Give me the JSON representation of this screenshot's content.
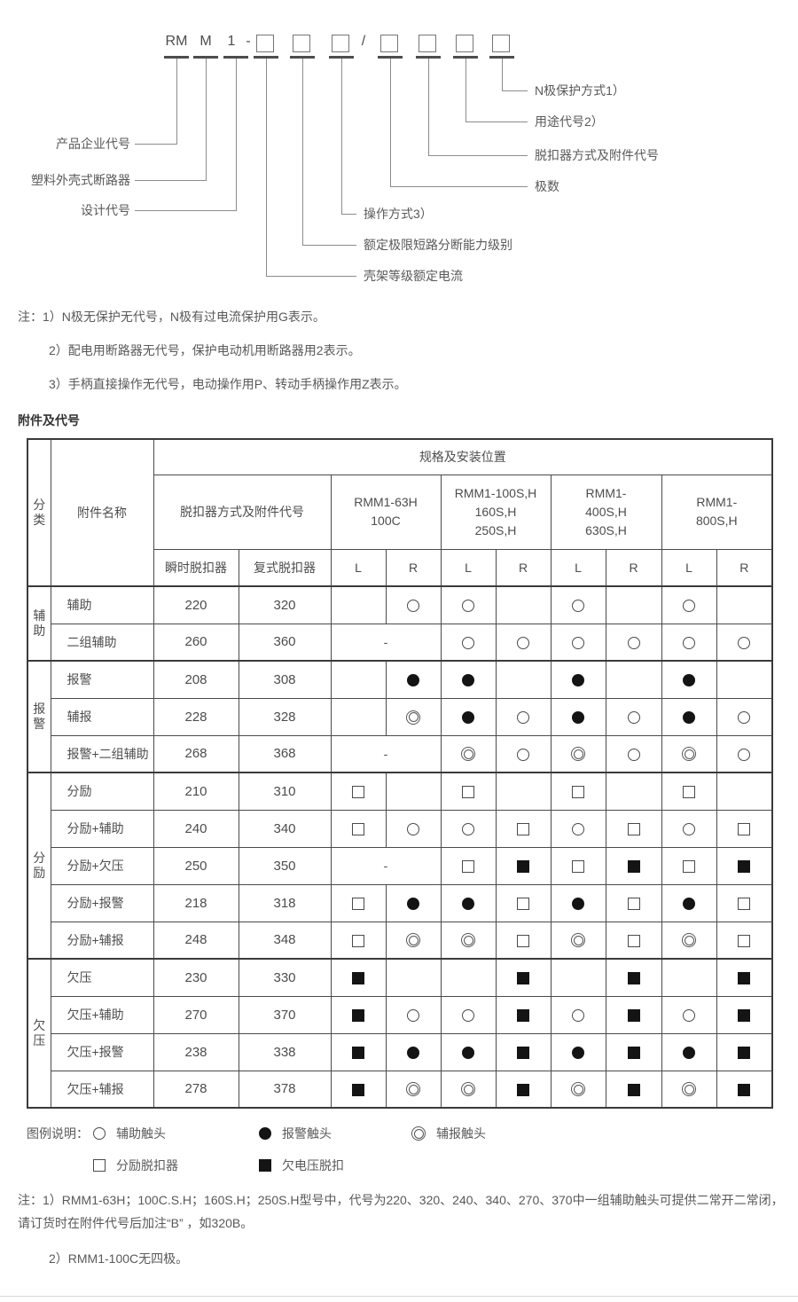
{
  "diagram": {
    "code": [
      "RM",
      "M",
      "1",
      "-",
      "/"
    ],
    "left_labels": [
      "产品企业代号",
      "塑料外壳式断路器",
      "设计代号"
    ],
    "mid_labels": [
      "操作方式3）",
      "额定极限短路分断能力级别",
      "壳架等级额定电流"
    ],
    "right_labels": [
      "N极保护方式1）",
      "用途代号2）",
      "脱扣器方式及附件代号",
      "极数"
    ]
  },
  "notes_top": [
    "注：1）N极无保护无代号，N极有过电流保护用G表示。",
    "2）配电用断路器无代号，保护电动机用断路器用2表示。",
    "3）手柄直接操作无代号，电动操作用P、转动手柄操作用Z表示。"
  ],
  "section_title": "附件及代号",
  "table": {
    "category_header": "分类",
    "name_header": "附件名称",
    "spec_header": "规格及安装位置",
    "trip_header": "脱扣器方式及附件代号",
    "trip_types": [
      "瞬时脱扣器",
      "复式脱扣器"
    ],
    "models": [
      {
        "lines": [
          "RMM1-63H",
          "100C"
        ]
      },
      {
        "lines": [
          "RMM1-100S,H",
          "160S,H",
          "250S,H"
        ]
      },
      {
        "lines": [
          "RMM1-",
          "400S,H",
          "630S,H"
        ]
      },
      {
        "lines": [
          "RMM1-",
          "800S,H"
        ]
      }
    ],
    "lr_labels": [
      "L",
      "R"
    ],
    "dash": "-",
    "groups": [
      {
        "category": "辅助",
        "rows": [
          {
            "name": "辅助",
            "instant": "220",
            "compound": "320",
            "dash63": false,
            "cells": [
              "",
              "circle",
              "circle",
              "",
              "circle",
              "",
              "circle",
              ""
            ]
          },
          {
            "name": "二组辅助",
            "instant": "260",
            "compound": "360",
            "dash63": true,
            "cells": [
              "circle",
              "circle",
              "circle",
              "circle",
              "circle",
              "circle"
            ]
          }
        ]
      },
      {
        "category": "报警",
        "rows": [
          {
            "name": "报警",
            "instant": "208",
            "compound": "308",
            "dash63": false,
            "cells": [
              "",
              "filled-circle",
              "filled-circle",
              "",
              "filled-circle",
              "",
              "filled-circle",
              ""
            ]
          },
          {
            "name": "辅报",
            "instant": "228",
            "compound": "328",
            "dash63": false,
            "cells": [
              "",
              "double-circle",
              "filled-circle",
              "circle",
              "filled-circle",
              "circle",
              "filled-circle",
              "circle"
            ]
          },
          {
            "name": "报警+二组辅助",
            "instant": "268",
            "compound": "368",
            "dash63": true,
            "cells": [
              "double-circle",
              "circle",
              "double-circle",
              "circle",
              "double-circle",
              "circle"
            ]
          }
        ]
      },
      {
        "category": "分励",
        "rows": [
          {
            "name": "分励",
            "instant": "210",
            "compound": "310",
            "dash63": false,
            "cells": [
              "square",
              "",
              "square",
              "",
              "square",
              "",
              "square",
              ""
            ]
          },
          {
            "name": "分励+辅助",
            "instant": "240",
            "compound": "340",
            "dash63": false,
            "cells": [
              "square",
              "circle",
              "circle",
              "square",
              "circle",
              "square",
              "circle",
              "square"
            ]
          },
          {
            "name": "分励+欠压",
            "instant": "250",
            "compound": "350",
            "dash63": true,
            "cells": [
              "square",
              "filled-square",
              "square",
              "filled-square",
              "square",
              "filled-square"
            ]
          },
          {
            "name": "分励+报警",
            "instant": "218",
            "compound": "318",
            "dash63": false,
            "cells": [
              "square",
              "filled-circle",
              "filled-circle",
              "square",
              "filled-circle",
              "square",
              "filled-circle",
              "square"
            ]
          },
          {
            "name": "分励+辅报",
            "instant": "248",
            "compound": "348",
            "dash63": false,
            "cells": [
              "square",
              "double-circle",
              "double-circle",
              "square",
              "double-circle",
              "square",
              "double-circle",
              "square"
            ]
          }
        ]
      },
      {
        "category": "欠压",
        "rows": [
          {
            "name": "欠压",
            "instant": "230",
            "compound": "330",
            "dash63": false,
            "cells": [
              "filled-square",
              "",
              "",
              "filled-square",
              "",
              "filled-square",
              "",
              "filled-square"
            ]
          },
          {
            "name": "欠压+辅助",
            "instant": "270",
            "compound": "370",
            "dash63": false,
            "cells": [
              "filled-square",
              "circle",
              "circle",
              "filled-square",
              "circle",
              "filled-square",
              "circle",
              "filled-square"
            ]
          },
          {
            "name": "欠压+报警",
            "instant": "238",
            "compound": "338",
            "dash63": false,
            "cells": [
              "filled-square",
              "filled-circle",
              "filled-circle",
              "filled-square",
              "filled-circle",
              "filled-square",
              "filled-circle",
              "filled-square"
            ]
          },
          {
            "name": "欠压+辅报",
            "instant": "278",
            "compound": "378",
            "dash63": false,
            "cells": [
              "filled-square",
              "double-circle",
              "double-circle",
              "filled-square",
              "double-circle",
              "filled-square",
              "double-circle",
              "filled-square"
            ]
          }
        ]
      }
    ]
  },
  "legend": {
    "title": "图例说明：",
    "items": [
      {
        "symbol": "circle",
        "label": "辅助触头"
      },
      {
        "symbol": "filled-circle",
        "label": "报警触头"
      },
      {
        "symbol": "double-circle",
        "label": "辅报触头"
      },
      {
        "symbol": "square",
        "label": "分励脱扣器"
      },
      {
        "symbol": "filled-square",
        "label": "欠电压脱扣"
      }
    ]
  },
  "notes_bottom": [
    "注：1）RMM1-63H；100C.S.H；160S.H；250S.H型号中，代号为220、320、240、340、270、370中一组辅助触头可提供二常开二常闭，请订货时在附件代号后加注“B” ，如320B。",
    "2）RMM1-100C无四极。"
  ]
}
